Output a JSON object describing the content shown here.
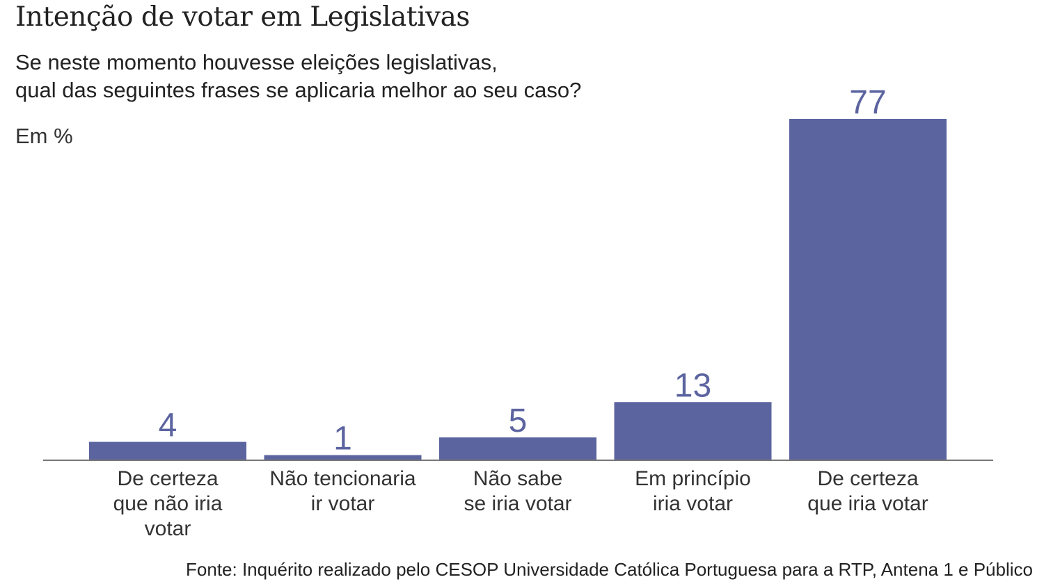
{
  "chart_data": {
    "type": "bar",
    "title": "Intenção de votar em Legislativas",
    "subtitle_lines": [
      "Se neste momento houvesse eleições legislativas,",
      "qual das seguintes frases se aplicaria melhor ao seu caso?"
    ],
    "unit_label": "Em %",
    "categories": [
      [
        "De certeza",
        "que não iria",
        "votar"
      ],
      [
        "Não tencionaria",
        "ir votar"
      ],
      [
        "Não sabe",
        "se iria votar"
      ],
      [
        "Em princípio",
        "iria votar"
      ],
      [
        "De certeza",
        "que iria votar"
      ]
    ],
    "values": [
      4,
      1,
      5,
      13,
      77
    ],
    "ylim": [
      0,
      77
    ],
    "grid": false,
    "legend": "none",
    "bar_color": "#5c64a0",
    "axis_color": "#777777",
    "source": "Fonte: Inquérito realizado pelo CESOP Universidade Católica Portuguesa para a RTP, Antena 1 e Público"
  }
}
